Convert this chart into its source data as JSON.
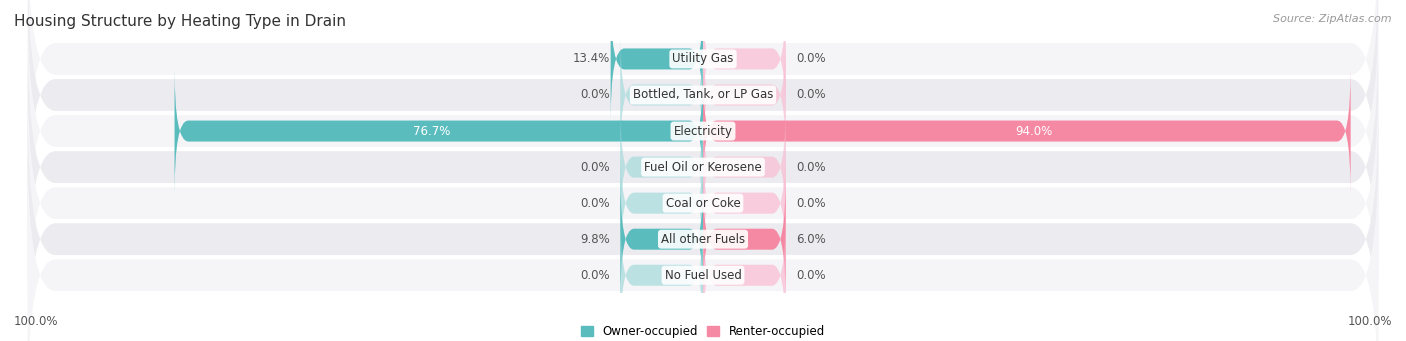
{
  "title": "Housing Structure by Heating Type in Drain",
  "source": "Source: ZipAtlas.com",
  "categories": [
    "Utility Gas",
    "Bottled, Tank, or LP Gas",
    "Electricity",
    "Fuel Oil or Kerosene",
    "Coal or Coke",
    "All other Fuels",
    "No Fuel Used"
  ],
  "owner_values": [
    13.4,
    0.0,
    76.7,
    0.0,
    0.0,
    9.8,
    0.0
  ],
  "renter_values": [
    0.0,
    0.0,
    94.0,
    0.0,
    0.0,
    6.0,
    0.0
  ],
  "owner_color": "#5bbcbe",
  "renter_color": "#f589a3",
  "owner_label": "Owner-occupied",
  "renter_label": "Renter-occupied",
  "max_value": 100.0,
  "x_left_label": "100.0%",
  "x_right_label": "100.0%",
  "bar_height": 0.58,
  "row_bg_color_odd": "#f5f5f8",
  "row_bg_color_even": "#ebebf0",
  "title_fontsize": 11,
  "label_fontsize": 8.5,
  "category_fontsize": 8.5,
  "source_fontsize": 8
}
